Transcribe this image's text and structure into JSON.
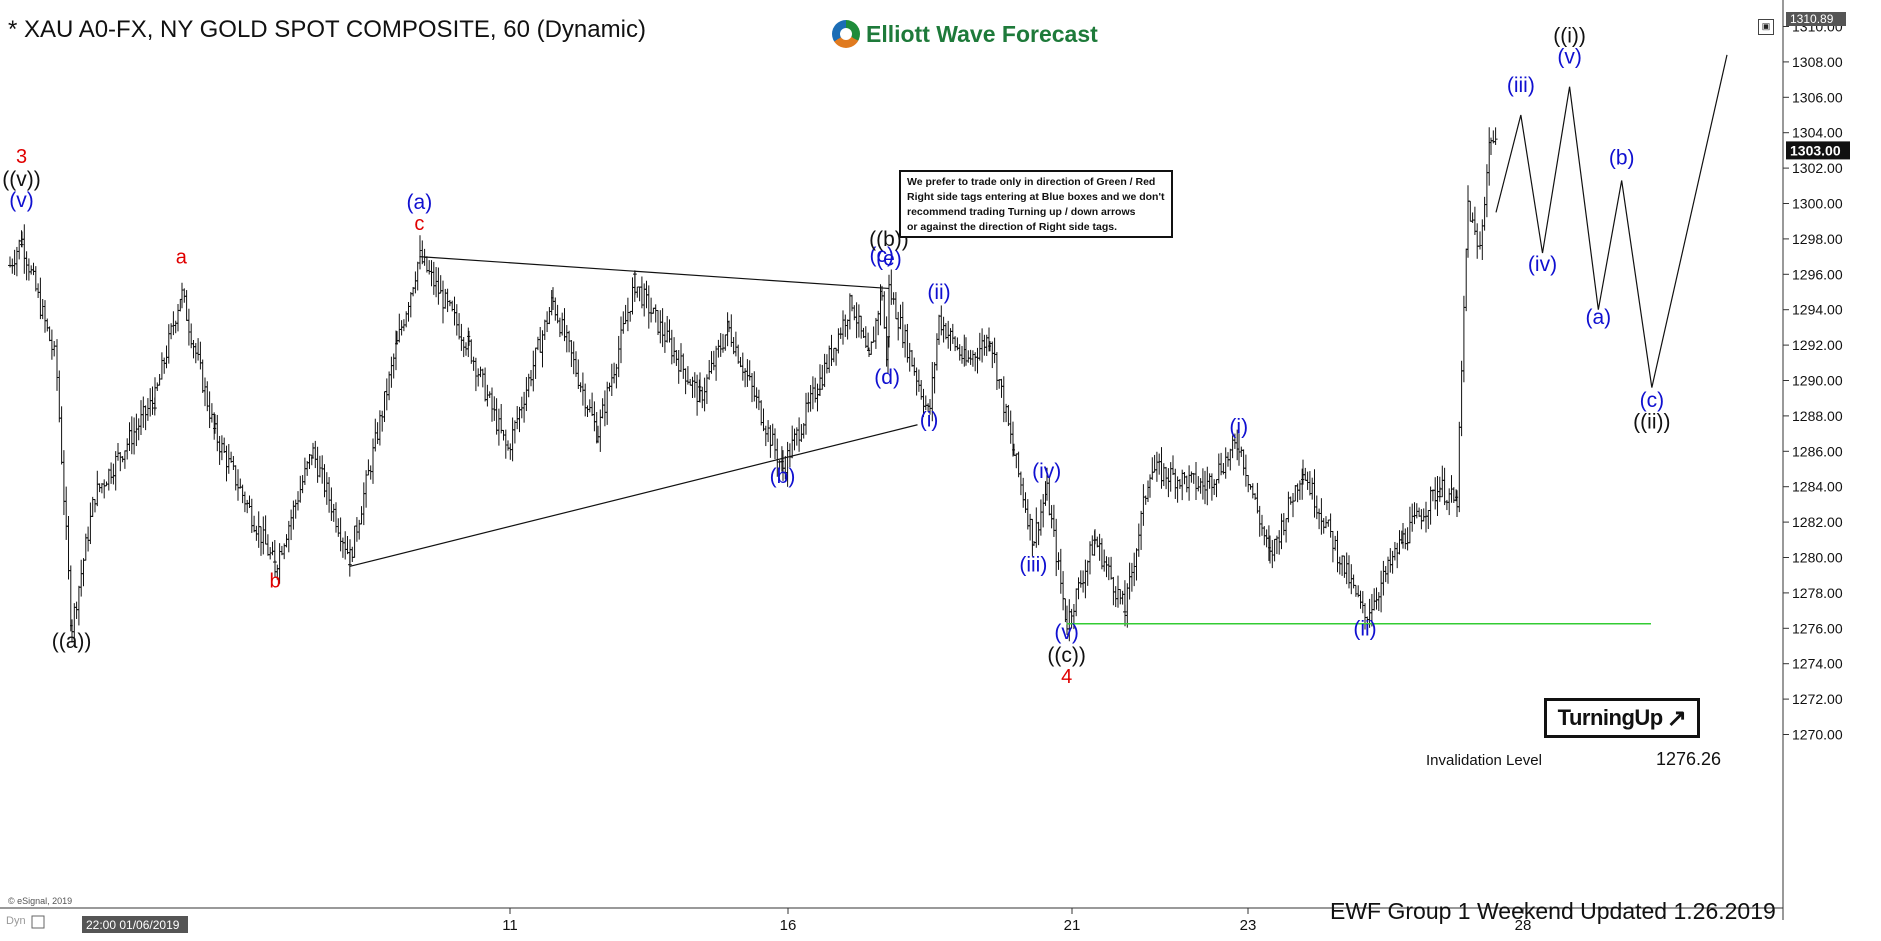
{
  "header": {
    "title": "* XAU A0-FX, NY GOLD SPOT COMPOSITE, 60 (Dynamic)",
    "logo_text": "Elliott Wave Forecast"
  },
  "notice": {
    "lines": [
      "We prefer to trade only in direction of Green / Red",
      "Right side tags entering at Blue boxes and we don't",
      "recommend trading Turning up / down arrows",
      "or against the direction of Right side tags."
    ]
  },
  "badge": {
    "label": "TurningUp",
    "arrow": "↗"
  },
  "invalidation": {
    "label": "Invalidation Level",
    "value": "1276.26"
  },
  "footer": {
    "text": "EWF Group 1  Weekend  Updated 1.26.2019",
    "copyright": "© eSignal, 2019",
    "dyn": "Dyn"
  },
  "price_axis": {
    "top_label": "1310.89",
    "current_label": "1303.00",
    "ticks": [
      "1310.00",
      "1308.00",
      "1306.00",
      "1304.00",
      "1302.00",
      "1300.00",
      "1298.00",
      "1296.00",
      "1294.00",
      "1292.00",
      "1290.00",
      "1288.00",
      "1286.00",
      "1284.00",
      "1282.00",
      "1280.00",
      "1278.00",
      "1276.00",
      "1274.00",
      "1272.00",
      "1270.00"
    ]
  },
  "time_axis": {
    "start_label": "22:00 01/06/2019",
    "ticks": [
      "11",
      "16",
      "21",
      "23",
      "28"
    ]
  },
  "colors": {
    "red": "#e00000",
    "blue": "#1010d0",
    "black": "#111111",
    "green_line": "#33cc33",
    "label_bg": "#555555"
  },
  "chart_data": {
    "type": "ohlc-bar",
    "symbol": "XAU A0-FX",
    "interval": "60",
    "current_price": 1303.0,
    "y_range": [
      1269,
      1311
    ],
    "invalidation_level": 1276.26,
    "price_path": [
      {
        "x": "2019-01-06 22:00",
        "y": 1296.5
      },
      {
        "x": "2019-01-07 01:00",
        "y": 1298.0
      },
      {
        "x": "2019-01-07 10:00",
        "y": 1291.0
      },
      {
        "x": "2019-01-07 14:00",
        "y": 1276.0
      },
      {
        "x": "2019-01-07 20:00",
        "y": 1283.5
      },
      {
        "x": "2019-01-08 12:00",
        "y": 1289.0
      },
      {
        "x": "2019-01-08 19:00",
        "y": 1295.0
      },
      {
        "x": "2019-01-09 04:00",
        "y": 1287.0
      },
      {
        "x": "2019-01-09 20:00",
        "y": 1279.5
      },
      {
        "x": "2019-01-10 06:00",
        "y": 1286.0
      },
      {
        "x": "2019-01-10 16:00",
        "y": 1280.0
      },
      {
        "x": "2019-01-11 06:00",
        "y": 1292.0
      },
      {
        "x": "2019-01-11 14:00",
        "y": 1297.0
      },
      {
        "x": "2019-01-13 22:00",
        "y": 1292.0
      },
      {
        "x": "2019-01-14 10:00",
        "y": 1286.0
      },
      {
        "x": "2019-01-14 22:00",
        "y": 1294.5
      },
      {
        "x": "2019-01-15 10:00",
        "y": 1287.0
      },
      {
        "x": "2019-01-15 20:00",
        "y": 1295.5
      },
      {
        "x": "2019-01-16 08:00",
        "y": 1289.0
      },
      {
        "x": "2019-01-16 18:00",
        "y": 1293.0
      },
      {
        "x": "2019-01-17 10:00",
        "y": 1285.0
      },
      {
        "x": "2019-01-17 20:00",
        "y": 1290.0
      },
      {
        "x": "2019-01-18 06:00",
        "y": 1294.5
      },
      {
        "x": "2019-01-18 12:00",
        "y": 1291.0
      },
      {
        "x": "2019-01-18 18:00",
        "y": 1295.2
      },
      {
        "x": "2019-01-19 00:00",
        "y": 1290.5
      },
      {
        "x": "2019-01-19 02:00",
        "y": 1295.2
      },
      {
        "x": "2019-01-20 23:00",
        "y": 1288.0
      },
      {
        "x": "2019-01-21 03:00",
        "y": 1293.5
      },
      {
        "x": "2019-01-21 12:00",
        "y": 1291.0
      },
      {
        "x": "2019-01-21 20:00",
        "y": 1292.5
      },
      {
        "x": "2019-01-22 04:00",
        "y": 1286.0
      },
      {
        "x": "2019-01-22 10:00",
        "y": 1281.0
      },
      {
        "x": "2019-01-22 14:00",
        "y": 1283.8
      },
      {
        "x": "2019-01-22 20:00",
        "y": 1276.3
      },
      {
        "x": "2019-01-23 04:00",
        "y": 1281.0
      },
      {
        "x": "2019-01-23 12:00",
        "y": 1277.0
      },
      {
        "x": "2019-01-23 20:00",
        "y": 1285.0
      },
      {
        "x": "2019-01-24 08:00",
        "y": 1284.0
      },
      {
        "x": "2019-01-24 14:00",
        "y": 1286.5
      },
      {
        "x": "2019-01-24 20:00",
        "y": 1280.0
      },
      {
        "x": "2019-01-25 02:00",
        "y": 1285.0
      },
      {
        "x": "2019-01-25 12:00",
        "y": 1276.6
      },
      {
        "x": "2019-01-25 18:00",
        "y": 1281.0
      },
      {
        "x": "2019-01-26 00:00",
        "y": 1284.0
      },
      {
        "x": "2019-01-26 06:00",
        "y": 1283.0
      },
      {
        "x": "2019-01-26 10:00",
        "y": 1300.0
      },
      {
        "x": "2019-01-26 14:00",
        "y": 1297.0
      },
      {
        "x": "2019-01-26 18:00",
        "y": 1304.0
      },
      {
        "x": "2019-01-26 20:00",
        "y": 1303.0
      }
    ],
    "projection_path": [
      {
        "x": "2019-01-26 20:00",
        "y": 1299.5
      },
      {
        "x": "2019-01-27 04:00",
        "y": 1305.0
      },
      {
        "x": "2019-01-27 12:00",
        "y": 1297.2
      },
      {
        "x": "2019-01-27 22:00",
        "y": 1306.6
      },
      {
        "x": "2019-01-28 08:00",
        "y": 1294.0
      },
      {
        "x": "2019-01-28 16:00",
        "y": 1301.3
      },
      {
        "x": "2019-01-29 02:00",
        "y": 1289.6
      },
      {
        "x": "2019-01-30 00:00",
        "y": 1308.4
      }
    ],
    "triangle_lines": [
      {
        "from": {
          "x": "2019-01-11 14:00",
          "y": 1297.0
        },
        "to": {
          "x": "2019-01-19 02:00",
          "y": 1295.2
        }
      },
      {
        "from": {
          "x": "2019-01-10 16:00",
          "y": 1279.5
        },
        "to": {
          "x": "2019-01-20 10:00",
          "y": 1287.5
        }
      }
    ],
    "labels": [
      {
        "text": "3",
        "color": "red",
        "x": "2019-01-07 01:00",
        "y": 1302.3
      },
      {
        "text": "((v))",
        "color": "black",
        "x": "2019-01-07 01:00",
        "y": 1301.0
      },
      {
        "text": "(v)",
        "color": "blue",
        "x": "2019-01-07 01:00",
        "y": 1299.8
      },
      {
        "text": "((a))",
        "color": "black",
        "x": "2019-01-07 14:00",
        "y": 1274.9
      },
      {
        "text": "a",
        "color": "red",
        "x": "2019-01-08 19:00",
        "y": 1296.6
      },
      {
        "text": "b",
        "color": "red",
        "x": "2019-01-09 20:00",
        "y": 1278.3
      },
      {
        "text": "(a)",
        "color": "blue",
        "x": "2019-01-11 14:00",
        "y": 1299.7
      },
      {
        "text": "c",
        "color": "red",
        "x": "2019-01-11 14:00",
        "y": 1298.5
      },
      {
        "text": "(b)",
        "color": "blue",
        "x": "2019-01-17 10:00",
        "y": 1284.2
      },
      {
        "text": "(c)",
        "color": "blue",
        "x": "2019-01-18 18:00",
        "y": 1296.7
      },
      {
        "text": "(d)",
        "color": "blue",
        "x": "2019-01-19 00:00",
        "y": 1289.8
      },
      {
        "text": "(e)",
        "color": "blue",
        "x": "2019-01-19 02:00",
        "y": 1296.5
      },
      {
        "text": "((b))",
        "color": "black",
        "x": "2019-01-19 02:00",
        "y": 1297.6
      },
      {
        "text": "(i)",
        "color": "blue",
        "x": "2019-01-20 23:00",
        "y": 1287.4
      },
      {
        "text": "(ii)",
        "color": "blue",
        "x": "2019-01-21 03:00",
        "y": 1294.6
      },
      {
        "text": "(iii)",
        "color": "blue",
        "x": "2019-01-22 10:00",
        "y": 1279.2
      },
      {
        "text": "(iv)",
        "color": "blue",
        "x": "2019-01-22 14:00",
        "y": 1284.5
      },
      {
        "text": "(v)",
        "color": "blue",
        "x": "2019-01-22 20:00",
        "y": 1275.4
      },
      {
        "text": "((c))",
        "color": "black",
        "x": "2019-01-22 20:00",
        "y": 1274.1
      },
      {
        "text": "4",
        "color": "red",
        "x": "2019-01-22 20:00",
        "y": 1272.9
      },
      {
        "text": "(i)",
        "color": "blue",
        "x": "2019-01-24 14:00",
        "y": 1287.0
      },
      {
        "text": "(ii)",
        "color": "blue",
        "x": "2019-01-25 12:00",
        "y": 1275.6
      },
      {
        "text": "(iii)",
        "color": "blue",
        "x": "2019-01-27 04:00",
        "y": 1306.3
      },
      {
        "text": "(iv)",
        "color": "blue",
        "x": "2019-01-27 12:00",
        "y": 1296.2
      },
      {
        "text": "((i))",
        "color": "black",
        "x": "2019-01-27 22:00",
        "y": 1309.1
      },
      {
        "text": "(v)",
        "color": "blue",
        "x": "2019-01-27 22:00",
        "y": 1307.9
      },
      {
        "text": "(a)",
        "color": "blue",
        "x": "2019-01-28 08:00",
        "y": 1293.2
      },
      {
        "text": "(b)",
        "color": "blue",
        "x": "2019-01-28 16:00",
        "y": 1302.2
      },
      {
        "text": "(c)",
        "color": "blue",
        "x": "2019-01-29 02:00",
        "y": 1288.5
      },
      {
        "text": "((ii))",
        "color": "black",
        "x": "2019-01-29 02:00",
        "y": 1287.3
      }
    ]
  }
}
